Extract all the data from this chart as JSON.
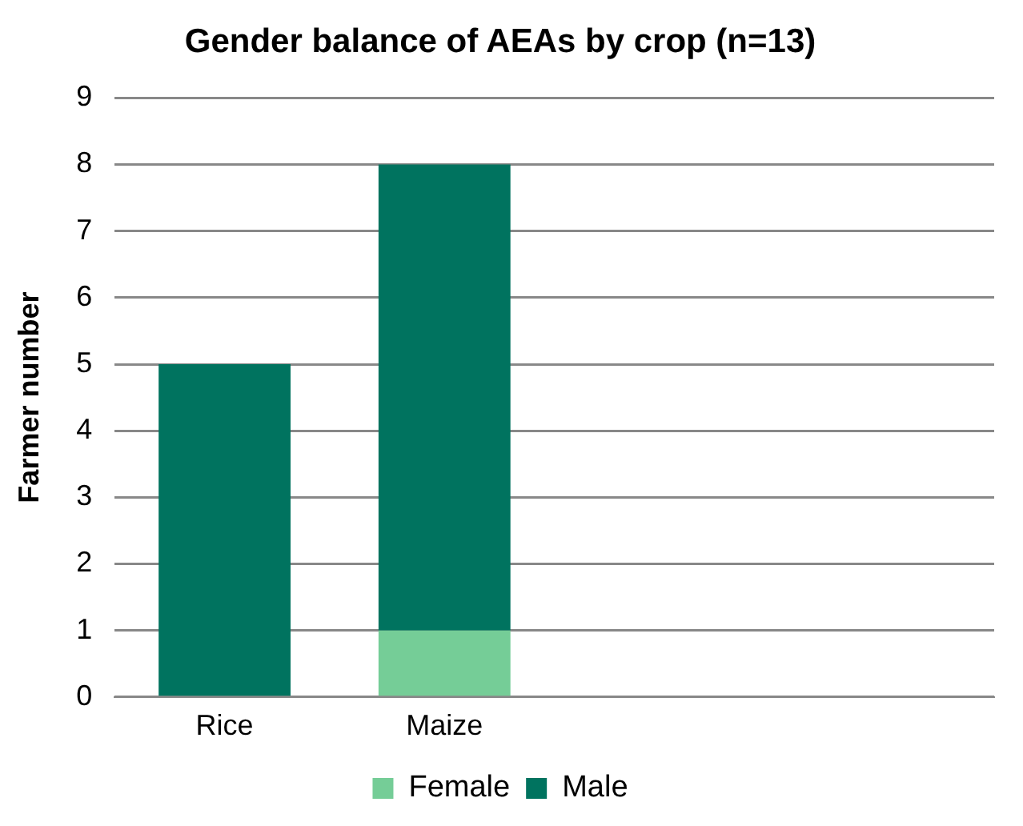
{
  "chart_data": {
    "type": "bar",
    "title": "Gender balance of AEAs by crop (n=13)",
    "ylabel": "Farmer number",
    "categories": [
      "Rice",
      "Maize",
      null,
      null
    ],
    "stacked": true,
    "series": [
      {
        "name": "Female",
        "color": "#75cd97",
        "values": [
          0,
          1,
          null,
          null
        ]
      },
      {
        "name": "Male",
        "color": "#00735f",
        "values": [
          5,
          7,
          null,
          null
        ]
      }
    ],
    "ylim": [
      0,
      9
    ],
    "yticks": [
      0,
      1,
      2,
      3,
      4,
      5,
      6,
      7,
      8,
      9
    ],
    "grid": "y",
    "legend": "bottom"
  }
}
